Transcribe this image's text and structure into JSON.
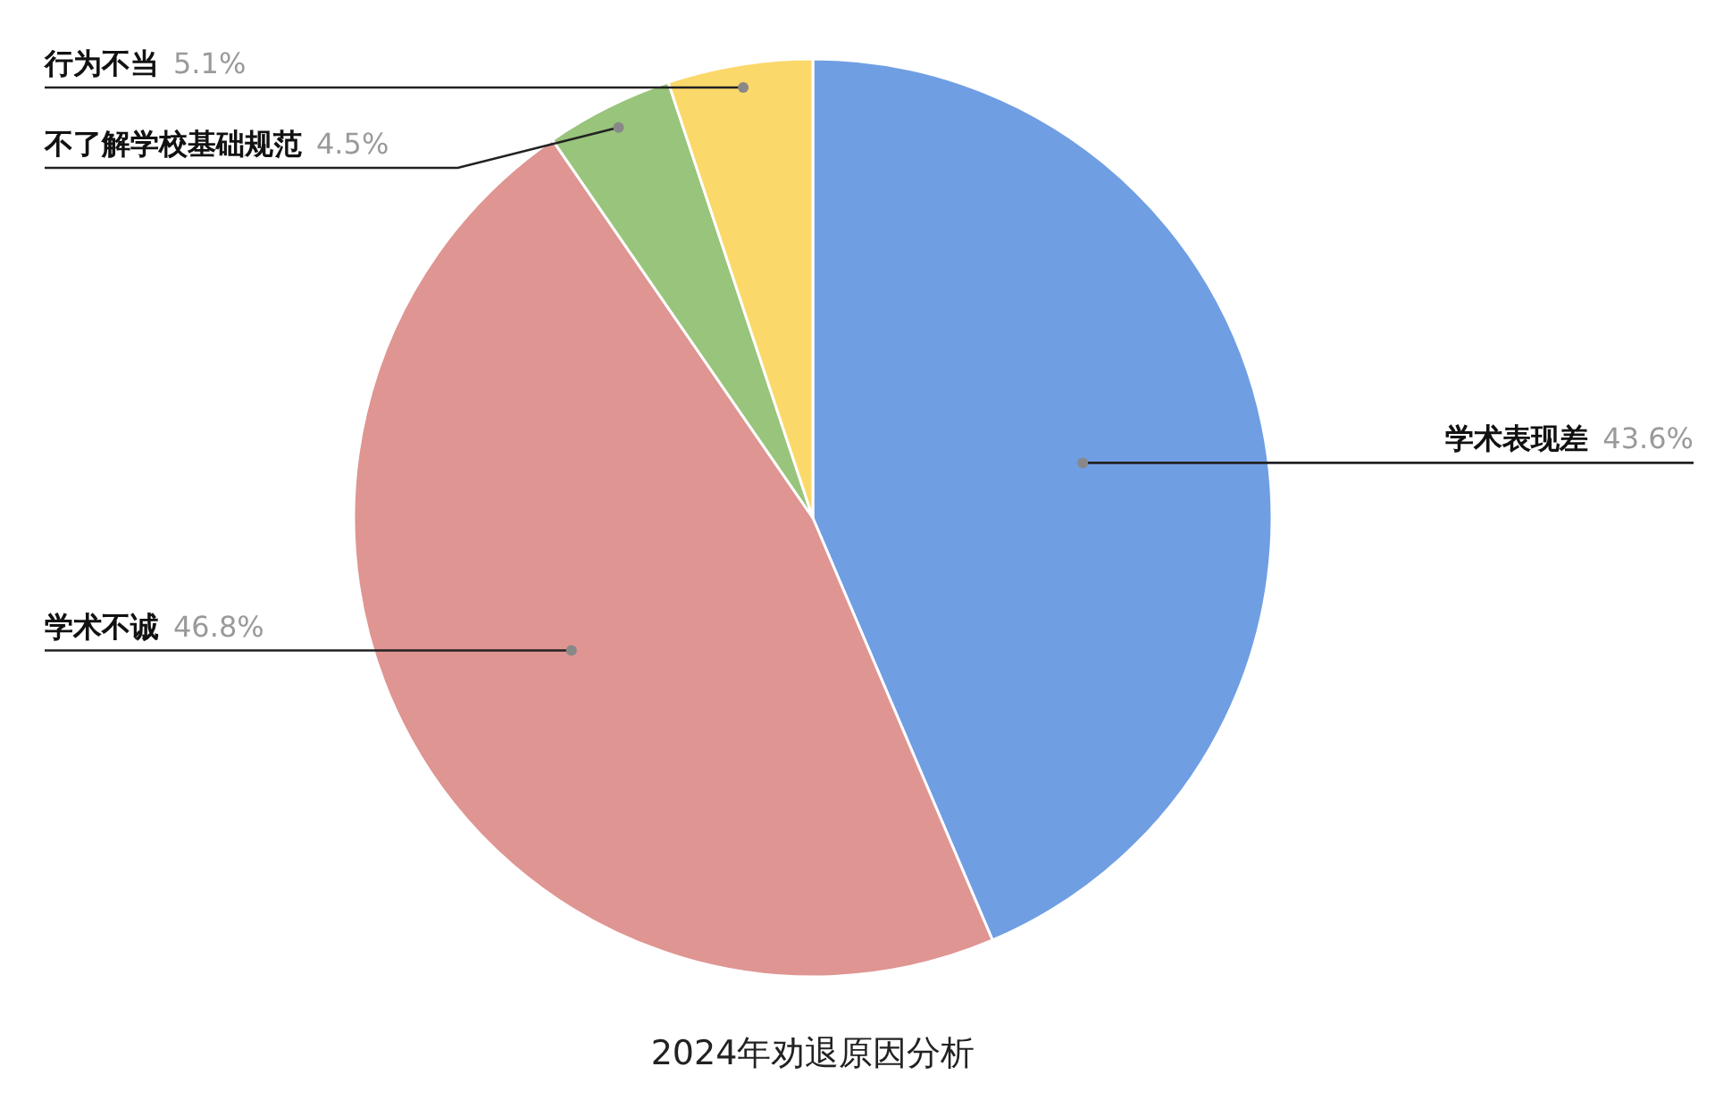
{
  "chart_data": {
    "type": "pie",
    "title": "2024年劝退原因分析",
    "categories": [
      "学术表现差",
      "学术不诚",
      "不了解学校基础规范",
      "行为不当"
    ],
    "values": [
      43.6,
      46.8,
      4.5,
      5.1
    ],
    "colors": [
      "#6f9ee3",
      "#df9592",
      "#98c47b",
      "#fad86a"
    ],
    "value_labels": [
      "43.6%",
      "46.8%",
      "4.5%",
      "5.1%"
    ]
  }
}
